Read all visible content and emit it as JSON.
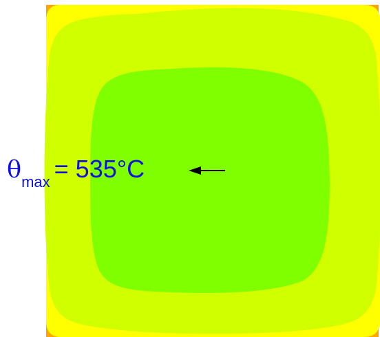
{
  "label": {
    "symbol": "θ",
    "subscript": "max",
    "value_text": "= 535°C"
  },
  "colors": {
    "corner": "#ffa500",
    "outer_band": "#ffff00",
    "middle_band": "#d0ff00",
    "inner_core": "#80ff00",
    "annotation_text": "#1010e0",
    "arrow": "#000000"
  },
  "icons": {
    "pointer": "arrow-left-icon"
  }
}
